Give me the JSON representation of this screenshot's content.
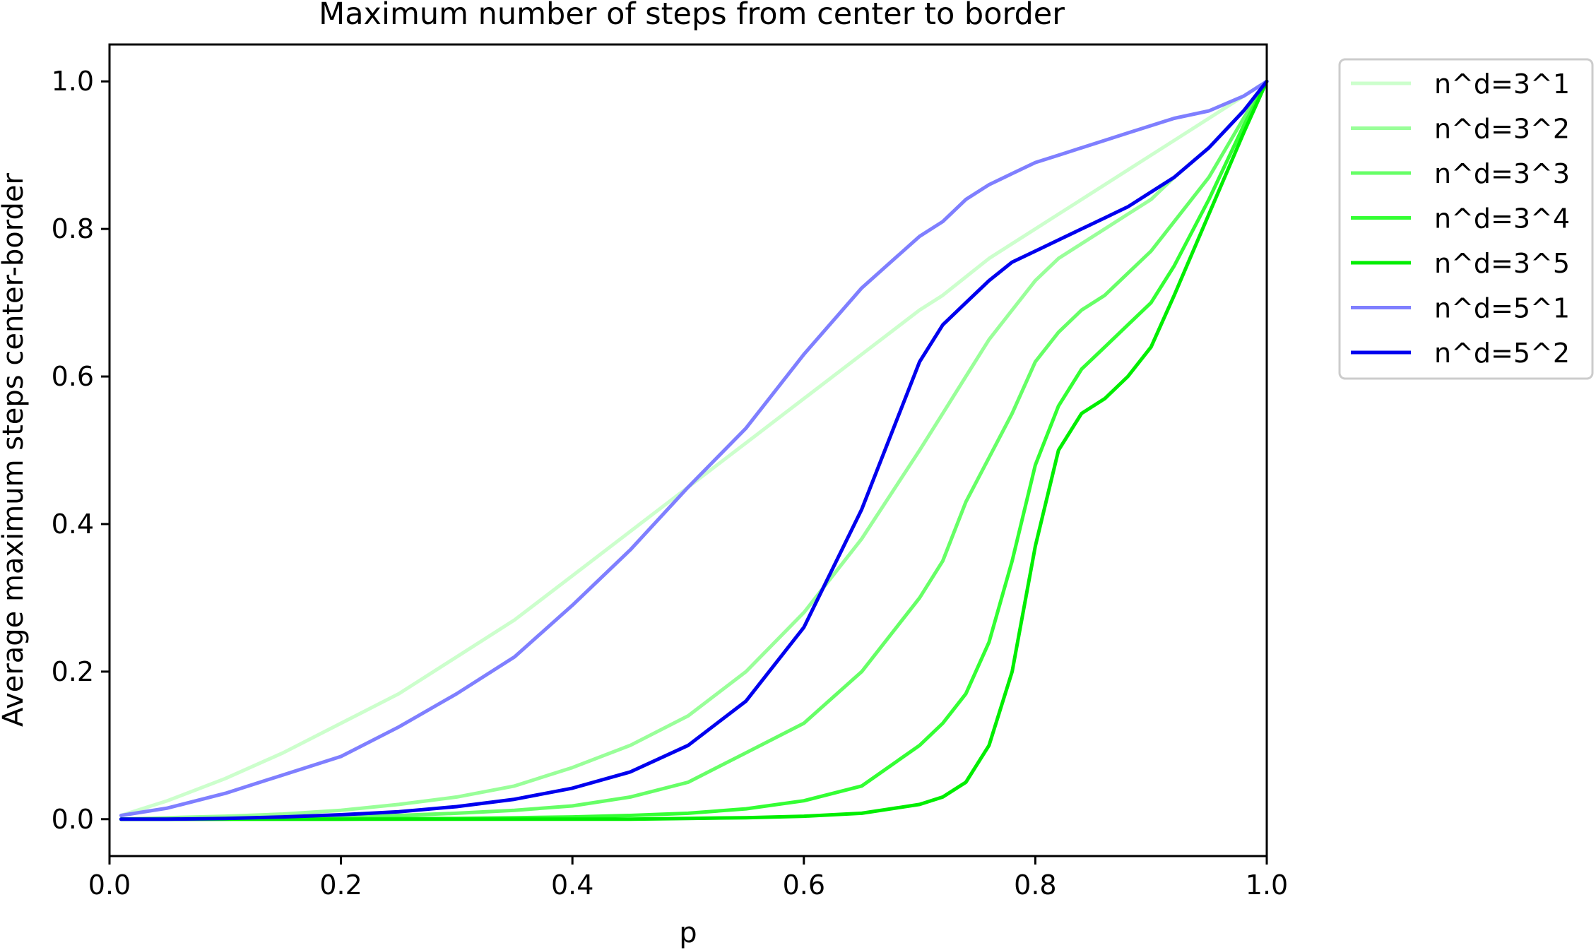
{
  "chart_data": {
    "type": "line",
    "title": "Maximum number of steps from center to border",
    "xlabel": "p",
    "ylabel": "Average maximum steps center-border",
    "xlim": [
      0.0,
      1.0
    ],
    "ylim": [
      -0.05,
      1.05
    ],
    "xticks": [
      "0.0",
      "0.2",
      "0.4",
      "0.6",
      "0.8",
      "1.0"
    ],
    "yticks": [
      "0.0",
      "0.2",
      "0.4",
      "0.6",
      "0.8",
      "1.0"
    ],
    "grid": false,
    "legend_position": "outside-top-right",
    "x": [
      0.01,
      0.05,
      0.1,
      0.15,
      0.2,
      0.25,
      0.3,
      0.35,
      0.4,
      0.45,
      0.5,
      0.55,
      0.6,
      0.65,
      0.7,
      0.72,
      0.74,
      0.76,
      0.78,
      0.8,
      0.82,
      0.84,
      0.86,
      0.88,
      0.9,
      0.92,
      0.95,
      0.98,
      1.0
    ],
    "series": [
      {
        "name": "n^d=3^1",
        "color": "#ccffcc",
        "values": [
          0.005,
          0.025,
          0.055,
          0.09,
          0.13,
          0.17,
          0.22,
          0.27,
          0.33,
          0.39,
          0.45,
          0.51,
          0.57,
          0.63,
          0.69,
          0.71,
          0.735,
          0.76,
          0.78,
          0.8,
          0.82,
          0.84,
          0.86,
          0.88,
          0.9,
          0.92,
          0.95,
          0.98,
          1.0
        ]
      },
      {
        "name": "n^d=3^2",
        "color": "#99ff99",
        "values": [
          0.0,
          0.002,
          0.004,
          0.007,
          0.012,
          0.02,
          0.03,
          0.045,
          0.07,
          0.1,
          0.14,
          0.2,
          0.28,
          0.38,
          0.5,
          0.55,
          0.6,
          0.65,
          0.69,
          0.73,
          0.76,
          0.78,
          0.8,
          0.82,
          0.84,
          0.87,
          0.91,
          0.96,
          1.0
        ]
      },
      {
        "name": "n^d=3^3",
        "color": "#66ff66",
        "values": [
          0.0,
          0.0,
          0.001,
          0.002,
          0.003,
          0.005,
          0.008,
          0.012,
          0.018,
          0.03,
          0.05,
          0.09,
          0.13,
          0.2,
          0.3,
          0.35,
          0.43,
          0.49,
          0.55,
          0.62,
          0.66,
          0.69,
          0.71,
          0.74,
          0.77,
          0.81,
          0.87,
          0.95,
          1.0
        ]
      },
      {
        "name": "n^d=3^4",
        "color": "#33ff33",
        "values": [
          0.0,
          0.0,
          0.0,
          0.0,
          0.0,
          0.001,
          0.001,
          0.002,
          0.003,
          0.005,
          0.008,
          0.014,
          0.025,
          0.045,
          0.1,
          0.13,
          0.17,
          0.24,
          0.35,
          0.48,
          0.56,
          0.61,
          0.64,
          0.67,
          0.7,
          0.75,
          0.84,
          0.94,
          1.0
        ]
      },
      {
        "name": "n^d=3^5",
        "color": "#00ee00",
        "values": [
          0.0,
          0.0,
          0.0,
          0.0,
          0.0,
          0.0,
          0.0,
          0.0,
          0.0,
          0.0,
          0.001,
          0.002,
          0.004,
          0.008,
          0.02,
          0.03,
          0.05,
          0.1,
          0.2,
          0.37,
          0.5,
          0.55,
          0.57,
          0.6,
          0.64,
          0.71,
          0.82,
          0.93,
          1.0
        ]
      },
      {
        "name": "n^d=5^1",
        "color": "#7f7fff",
        "values": [
          0.005,
          0.015,
          0.035,
          0.06,
          0.085,
          0.125,
          0.17,
          0.22,
          0.29,
          0.365,
          0.45,
          0.53,
          0.63,
          0.72,
          0.79,
          0.81,
          0.84,
          0.86,
          0.875,
          0.89,
          0.9,
          0.91,
          0.92,
          0.93,
          0.94,
          0.95,
          0.96,
          0.98,
          1.0
        ]
      },
      {
        "name": "n^d=5^2",
        "color": "#0000ee",
        "values": [
          0.0,
          0.0,
          0.001,
          0.003,
          0.006,
          0.01,
          0.017,
          0.027,
          0.042,
          0.064,
          0.1,
          0.16,
          0.26,
          0.42,
          0.62,
          0.67,
          0.7,
          0.73,
          0.755,
          0.77,
          0.785,
          0.8,
          0.815,
          0.83,
          0.85,
          0.87,
          0.91,
          0.96,
          1.0
        ]
      }
    ]
  }
}
